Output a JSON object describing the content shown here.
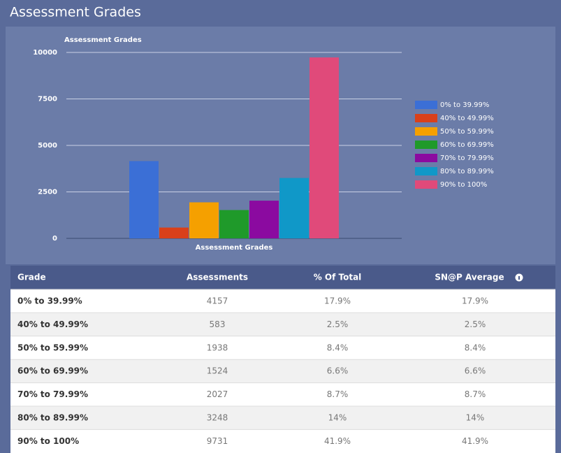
{
  "header": {
    "title": "Assessment Grades"
  },
  "chart_data": {
    "type": "bar",
    "title": "Assessment Grades",
    "x_label": "Assessment Grades",
    "ylim": [
      0,
      10000
    ],
    "yticks": [
      0,
      2500,
      5000,
      7500,
      10000
    ],
    "grid": true,
    "legend": "right",
    "series": [
      {
        "name": "0% to 39.99%",
        "color": "#3b6fd6",
        "values": [
          4157
        ]
      },
      {
        "name": "40% to 49.99%",
        "color": "#d9401a",
        "values": [
          583
        ]
      },
      {
        "name": "50% to 59.99%",
        "color": "#f5a000",
        "values": [
          1938
        ]
      },
      {
        "name": "60% to 69.99%",
        "color": "#1f9a2a",
        "values": [
          1524
        ]
      },
      {
        "name": "70% to 79.99%",
        "color": "#8b0aa0",
        "values": [
          2027
        ]
      },
      {
        "name": "80% to 89.99%",
        "color": "#1098c8",
        "values": [
          3248
        ]
      },
      {
        "name": "90% to 100%",
        "color": "#e04a7a",
        "values": [
          9731
        ]
      }
    ]
  },
  "table": {
    "columns": [
      "Grade",
      "Assessments",
      "% Of Total",
      "SN@P Average"
    ],
    "rows": [
      [
        "0% to 39.99%",
        4157,
        "17.9%",
        "17.9%"
      ],
      [
        "40% to 49.99%",
        583,
        "2.5%",
        "2.5%"
      ],
      [
        "50% to 59.99%",
        1938,
        "8.4%",
        "8.4%"
      ],
      [
        "60% to 69.99%",
        1524,
        "6.6%",
        "6.6%"
      ],
      [
        "70% to 79.99%",
        2027,
        "8.7%",
        "8.7%"
      ],
      [
        "80% to 89.99%",
        3248,
        "14%",
        "14%"
      ],
      [
        "90% to 100%",
        9731,
        "41.9%",
        "41.9%"
      ]
    ]
  }
}
